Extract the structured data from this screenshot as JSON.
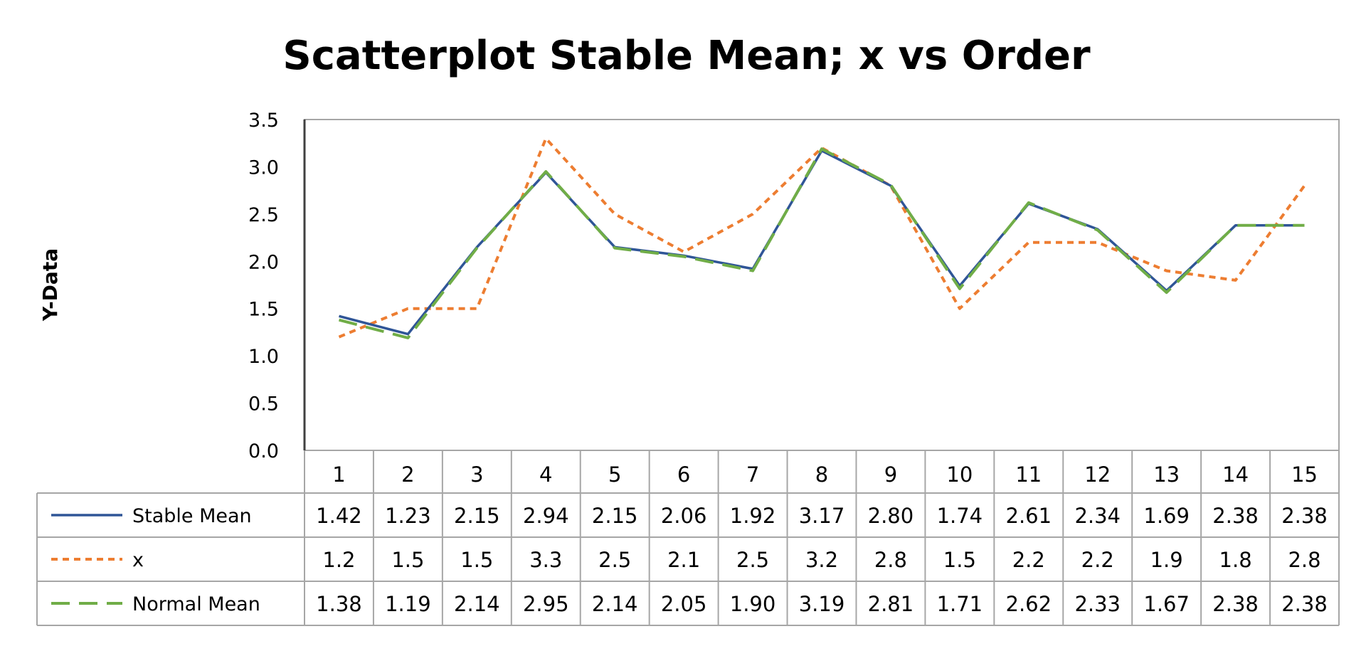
{
  "chart_data": {
    "type": "line",
    "title": "Scatterplot Stable Mean; x vs Order",
    "xlabel": "",
    "ylabel": "Y-Data",
    "ylim": [
      0,
      3.5
    ],
    "yticks": [
      "0.0",
      "0.5",
      "1.0",
      "1.5",
      "2.0",
      "2.5",
      "3.0",
      "3.5"
    ],
    "grid": false,
    "legend": "data-table",
    "categories": [
      "1",
      "2",
      "3",
      "4",
      "5",
      "6",
      "7",
      "8",
      "9",
      "10",
      "11",
      "12",
      "13",
      "14",
      "15"
    ],
    "series": [
      {
        "name": "Stable Mean",
        "color": "#2f5597",
        "style": "solid",
        "values": [
          1.42,
          1.23,
          2.15,
          2.94,
          2.15,
          2.06,
          1.92,
          3.17,
          2.8,
          1.74,
          2.61,
          2.34,
          1.69,
          2.38,
          2.38
        ],
        "labels": [
          "1.42",
          "1.23",
          "2.15",
          "2.94",
          "2.15",
          "2.06",
          "1.92",
          "3.17",
          "2.80",
          "1.74",
          "2.61",
          "2.34",
          "1.69",
          "2.38",
          "2.38"
        ]
      },
      {
        "name": "x",
        "color": "#ed7d31",
        "style": "dotted",
        "values": [
          1.2,
          1.5,
          1.5,
          3.3,
          2.5,
          2.1,
          2.5,
          3.2,
          2.8,
          1.5,
          2.2,
          2.2,
          1.9,
          1.8,
          2.8
        ],
        "labels": [
          "1.2",
          "1.5",
          "1.5",
          "3.3",
          "2.5",
          "2.1",
          "2.5",
          "3.2",
          "2.8",
          "1.5",
          "2.2",
          "2.2",
          "1.9",
          "1.8",
          "2.8"
        ]
      },
      {
        "name": "Normal Mean",
        "color": "#70ad47",
        "style": "dashed",
        "values": [
          1.38,
          1.19,
          2.14,
          2.95,
          2.14,
          2.05,
          1.9,
          3.19,
          2.81,
          1.71,
          2.62,
          2.33,
          1.67,
          2.38,
          2.38
        ],
        "labels": [
          "1.38",
          "1.19",
          "2.14",
          "2.95",
          "2.14",
          "2.05",
          "1.90",
          "3.19",
          "2.81",
          "1.71",
          "2.62",
          "2.33",
          "1.67",
          "2.38",
          "2.38"
        ]
      }
    ]
  }
}
